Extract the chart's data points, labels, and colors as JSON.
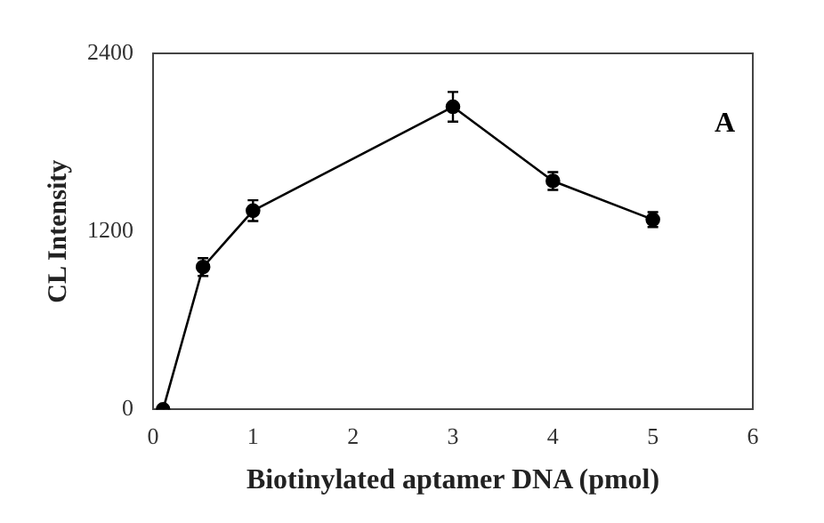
{
  "chart_data": {
    "type": "line",
    "xlabel": "Biotinylated aptamer DNA (pmol)",
    "ylabel": "CL Intensity",
    "annotations": [
      "A"
    ],
    "x": [
      0.1,
      0.5,
      1,
      3,
      4,
      5
    ],
    "series": [
      {
        "color": "#000000",
        "values": [
          0,
          960,
          1340,
          2040,
          1540,
          1280
        ],
        "errors": [
          null,
          60,
          70,
          100,
          60,
          50
        ]
      }
    ],
    "xlim": [
      0,
      6
    ],
    "xticks": [
      0,
      1,
      2,
      3,
      4,
      5,
      6
    ],
    "ylim": [
      0,
      2400
    ],
    "yticks": [
      0,
      1200,
      2400
    ],
    "grid": false,
    "legend": false,
    "marker": "circle",
    "line_style": "solid"
  }
}
